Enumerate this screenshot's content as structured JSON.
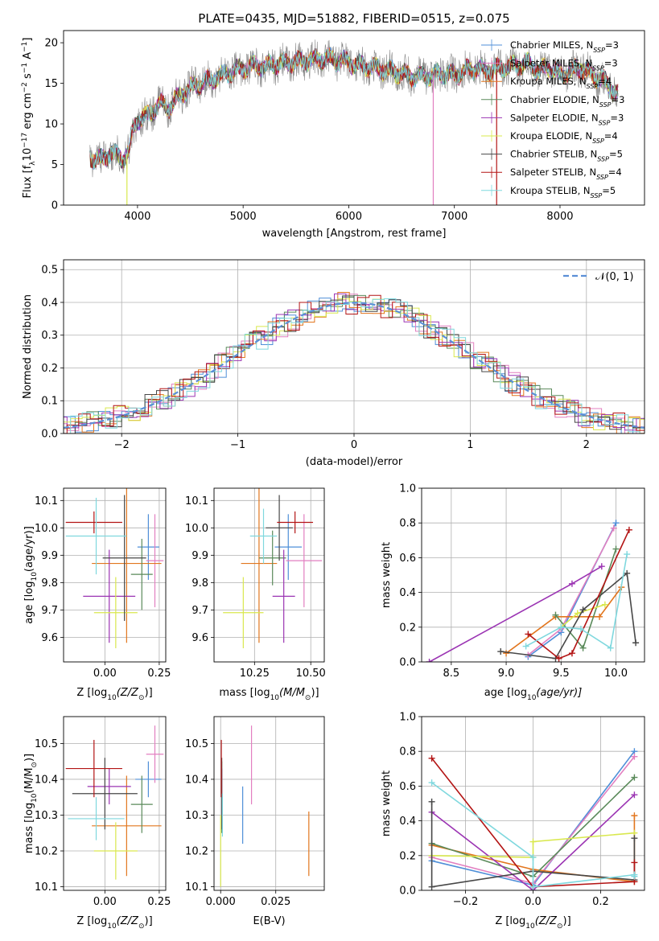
{
  "figure_title": "PLATE=0435, MJD=51882, FIBERID=0515, z=0.075",
  "models": [
    {
      "name": "Chabrier MILES",
      "nssp": "3",
      "color": "#4f8fd8"
    },
    {
      "name": "Salpeter MILES",
      "nssp": "3",
      "color": "#e27fc0"
    },
    {
      "name": "Kroupa MILES",
      "nssp": "4",
      "color": "#e2761e"
    },
    {
      "name": "Chabrier ELODIE",
      "nssp": "3",
      "color": "#5a8a5a"
    },
    {
      "name": "Salpeter ELODIE",
      "nssp": "3",
      "color": "#9b34b3"
    },
    {
      "name": "Kroupa ELODIE",
      "nssp": "4",
      "color": "#d9e84e"
    },
    {
      "name": "Chabrier STELIB",
      "nssp": "5",
      "color": "#474747"
    },
    {
      "name": "Salpeter STELIB",
      "nssp": "4",
      "color": "#b31414"
    },
    {
      "name": "Kroupa STELIB",
      "nssp": "5",
      "color": "#7fd8de"
    }
  ],
  "chart_data": [
    {
      "id": "spectrum",
      "type": "line",
      "xlabel": "wavelength [Angstrom, rest frame]",
      "ylabel_main": "Flux [f",
      "ylabel_unit": "10",
      "ylabel_exp": "−17",
      "ylabel_tail": " erg cm",
      "ylabel_exp2": "−2",
      "ylabel_tail2": " s",
      "ylabel_exp3": "−1",
      "ylabel_tail3": " A",
      "ylabel_exp4": "−1",
      "ylabel_end": "]",
      "xlim": [
        3300,
        8800
      ],
      "ylim": [
        0,
        21.5
      ],
      "xticks": [
        4000,
        5000,
        6000,
        7000,
        8000
      ],
      "yticks": [
        0,
        5,
        10,
        15,
        20
      ],
      "xticklabels": [
        "4000",
        "5000",
        "6000",
        "7000",
        "8000"
      ],
      "yticklabels": [
        "0",
        "5",
        "10",
        "15",
        "20"
      ],
      "continuum": {
        "x": [
          3550,
          3650,
          3750,
          3850,
          3920,
          3960,
          4000,
          4100,
          4200,
          4300,
          4400,
          4500,
          4600,
          4700,
          4800,
          4900,
          5000,
          5100,
          5200,
          5300,
          5400,
          5500,
          5600,
          5700,
          5800,
          5900,
          6000,
          6100,
          6200,
          6300,
          6400,
          6500,
          6600,
          6700,
          6800,
          6900,
          7000,
          7100,
          7200,
          7300,
          7400,
          7500,
          7600,
          7700,
          7800,
          7900,
          8000,
          8100,
          8200,
          8300,
          8400,
          8550
        ],
        "y": [
          6.0,
          5.5,
          6.5,
          5.8,
          6.5,
          9.5,
          10.5,
          11.0,
          12.5,
          12.0,
          13.5,
          14.5,
          15.0,
          15.5,
          16.0,
          16.5,
          16.8,
          17.2,
          17.0,
          17.4,
          17.5,
          17.7,
          17.8,
          18.0,
          18.0,
          17.8,
          17.6,
          17.2,
          17.0,
          16.8,
          16.5,
          16.2,
          15.8,
          15.8,
          16.0,
          16.2,
          16.0,
          16.5,
          16.8,
          16.5,
          16.8,
          17.0,
          17.2,
          17.5,
          16.5,
          17.0,
          16.0,
          16.5,
          17.0,
          16.0,
          15.5,
          13.5
        ]
      },
      "dips": [
        {
          "x": 3900,
          "model": "Kroupa ELODIE",
          "y": 0
        },
        {
          "x": 6800,
          "model": "Salpeter MILES",
          "y": 0
        },
        {
          "x": 7400,
          "model": "Salpeter STELIB",
          "y": 0
        }
      ]
    },
    {
      "id": "residual-hist",
      "type": "histogram",
      "xlabel": "(data-model)/error",
      "ylabel": "Normed distribution",
      "xlim": [
        -2.5,
        2.5
      ],
      "ylim": [
        0,
        0.53
      ],
      "xticks": [
        -2,
        -1,
        0,
        1,
        2
      ],
      "yticks": [
        0.0,
        0.1,
        0.2,
        0.3,
        0.4,
        0.5
      ],
      "xticklabels": [
        "−2",
        "−1",
        "0",
        "1",
        "2"
      ],
      "yticklabels": [
        "0.0",
        "0.1",
        "0.2",
        "0.3",
        "0.4",
        "0.5"
      ],
      "bin_width": 0.1,
      "reference_label": "𝒩(0, 1)",
      "reference_color": "#5b8fd6"
    },
    {
      "id": "age-vs-Z",
      "type": "errorbar",
      "xlabel": "Z [log",
      "xlabel_sub": "10",
      "xlabel_tail": "(Z/Z",
      "xlabel_sub2": "⊙",
      "xlabel_end": ")]",
      "ylabel": "age  [log",
      "ylabel_sub": "10",
      "ylabel_tail": "(age/yr)]",
      "xlim": [
        -0.19,
        0.28
      ],
      "ylim": [
        9.51,
        10.145
      ],
      "xticks": [
        0.0,
        0.25
      ],
      "yticks": [
        9.6,
        9.7,
        9.8,
        9.9,
        10.0,
        10.1
      ],
      "xticklabels": [
        "0.00",
        "0.25"
      ],
      "yticklabels": [
        "9.6",
        "9.7",
        "9.8",
        "9.9",
        "10.0",
        "10.1"
      ],
      "points": [
        {
          "model": "Chabrier MILES",
          "x": 0.2,
          "xerr": 0.05,
          "y": 9.93,
          "yerr": 0.12
        },
        {
          "model": "Salpeter MILES",
          "x": 0.23,
          "xerr": 0.04,
          "y": 9.88,
          "yerr": 0.17
        },
        {
          "model": "Kroupa MILES",
          "x": 0.1,
          "xerr": 0.16,
          "y": 9.87,
          "yerr": 0.29
        },
        {
          "model": "Chabrier ELODIE",
          "x": 0.17,
          "xerr": 0.05,
          "y": 9.83,
          "yerr": 0.13
        },
        {
          "model": "Salpeter ELODIE",
          "x": 0.02,
          "xerr": 0.12,
          "y": 9.75,
          "yerr": 0.17
        },
        {
          "model": "Kroupa ELODIE",
          "x": 0.05,
          "xerr": 0.1,
          "y": 9.69,
          "yerr": 0.13
        },
        {
          "model": "Chabrier STELIB",
          "x": 0.09,
          "xerr": 0.1,
          "y": 9.89,
          "yerr": 0.23
        },
        {
          "model": "Salpeter STELIB",
          "x": -0.05,
          "xerr": 0.13,
          "y": 10.02,
          "yerr": 0.04
        },
        {
          "model": "Kroupa STELIB",
          "x": -0.04,
          "xerr": 0.14,
          "y": 9.97,
          "yerr": 0.14
        }
      ]
    },
    {
      "id": "age-vs-mass",
      "type": "errorbar",
      "xlabel": "mass [log",
      "xlabel_sub": "10",
      "xlabel_tail": "(M/M",
      "xlabel_sub2": "⊙",
      "xlabel_end": ")]",
      "xlim": [
        10.07,
        10.56
      ],
      "ylim": [
        9.51,
        10.145
      ],
      "xticks": [
        10.25,
        10.5
      ],
      "yticks": [
        9.6,
        9.7,
        9.8,
        9.9,
        10.0,
        10.1
      ],
      "xticklabels": [
        "10.25",
        "10.50"
      ],
      "yticklabels": [
        "9.6",
        "9.7",
        "9.8",
        "9.9",
        "10.0",
        "10.1"
      ],
      "points": [
        {
          "model": "Chabrier MILES",
          "x": 10.4,
          "xerr": 0.06,
          "y": 9.93,
          "yerr": 0.12
        },
        {
          "model": "Salpeter MILES",
          "x": 10.47,
          "xerr": 0.08,
          "y": 9.88,
          "yerr": 0.17
        },
        {
          "model": "Kroupa MILES",
          "x": 10.27,
          "xerr": 0.08,
          "y": 9.87,
          "yerr": 0.29
        },
        {
          "model": "Chabrier ELODIE",
          "x": 10.33,
          "xerr": 0.06,
          "y": 9.89,
          "yerr": 0.1
        },
        {
          "model": "Salpeter ELODIE",
          "x": 10.38,
          "xerr": 0.05,
          "y": 9.75,
          "yerr": 0.17
        },
        {
          "model": "Kroupa ELODIE",
          "x": 10.2,
          "xerr": 0.09,
          "y": 9.69,
          "yerr": 0.13
        },
        {
          "model": "Chabrier STELIB",
          "x": 10.36,
          "xerr": 0.06,
          "y": 10.0,
          "yerr": 0.12
        },
        {
          "model": "Salpeter STELIB",
          "x": 10.43,
          "xerr": 0.08,
          "y": 10.02,
          "yerr": 0.04
        },
        {
          "model": "Kroupa STELIB",
          "x": 10.29,
          "xerr": 0.06,
          "y": 9.97,
          "yerr": 0.1
        }
      ]
    },
    {
      "id": "mass-weight-vs-age",
      "type": "line",
      "xlabel": "age  [log",
      "xlabel_sub": "10",
      "xlabel_tail": "(age/yr)]",
      "ylabel": "mass weight",
      "xlim": [
        8.23,
        10.26
      ],
      "ylim": [
        0,
        1.0
      ],
      "xticks": [
        8.5,
        9.0,
        9.5,
        10.0
      ],
      "yticks": [
        0.0,
        0.2,
        0.4,
        0.6,
        0.8,
        1.0
      ],
      "xticklabels": [
        "8.5",
        "9.0",
        "9.5",
        "10.0"
      ],
      "yticklabels": [
        "0.0",
        "0.2",
        "0.4",
        "0.6",
        "0.8",
        "1.0"
      ],
      "series": [
        {
          "model": "Chabrier MILES",
          "x": [
            9.2,
            9.5,
            10.0
          ],
          "y": [
            0.03,
            0.17,
            0.8
          ]
        },
        {
          "model": "Salpeter MILES",
          "x": [
            9.2,
            9.5,
            9.98
          ],
          "y": [
            0.04,
            0.19,
            0.77
          ]
        },
        {
          "model": "Kroupa MILES",
          "x": [
            9.0,
            9.45,
            9.85,
            10.05
          ],
          "y": [
            0.05,
            0.26,
            0.26,
            0.43
          ]
        },
        {
          "model": "Chabrier ELODIE",
          "x": [
            9.45,
            9.7,
            10.0
          ],
          "y": [
            0.27,
            0.08,
            0.65
          ]
        },
        {
          "model": "Salpeter ELODIE",
          "x": [
            8.3,
            9.6,
            9.87
          ],
          "y": [
            0.0,
            0.45,
            0.55
          ]
        },
        {
          "model": "Kroupa ELODIE",
          "x": [
            9.5,
            9.65,
            9.9
          ],
          "y": [
            0.2,
            0.28,
            0.33
          ]
        },
        {
          "model": "Chabrier STELIB",
          "x": [
            8.95,
            9.45,
            9.7,
            10.1,
            10.18
          ],
          "y": [
            0.06,
            0.02,
            0.3,
            0.51,
            0.11
          ]
        },
        {
          "model": "Salpeter STELIB",
          "x": [
            9.2,
            9.48,
            9.6,
            10.12
          ],
          "y": [
            0.16,
            0.02,
            0.05,
            0.76
          ]
        },
        {
          "model": "Kroupa STELIB",
          "x": [
            9.18,
            9.5,
            9.68,
            9.95,
            10.1
          ],
          "y": [
            0.09,
            0.2,
            0.19,
            0.08,
            0.62
          ]
        }
      ]
    },
    {
      "id": "mass-vs-Z",
      "type": "errorbar",
      "xlabel": "Z [log",
      "xlabel_sub": "10",
      "xlabel_tail": "(Z/Z",
      "xlabel_sub2": "⊙",
      "xlabel_end": ")]",
      "ylabel": "mass [log",
      "ylabel_sub": "10",
      "ylabel_tail": "(M/M",
      "ylabel_sub2": "⊙",
      "ylabel_end": ")]",
      "xlim": [
        -0.19,
        0.28
      ],
      "ylim": [
        10.09,
        10.575
      ],
      "xticks": [
        0.0,
        0.25
      ],
      "yticks": [
        10.1,
        10.2,
        10.3,
        10.4,
        10.5
      ],
      "xticklabels": [
        "0.00",
        "0.25"
      ],
      "yticklabels": [
        "10.1",
        "10.2",
        "10.3",
        "10.4",
        "10.5"
      ],
      "points": [
        {
          "model": "Chabrier MILES",
          "x": 0.2,
          "xerr": 0.06,
          "y": 10.4,
          "yerr": 0.05
        },
        {
          "model": "Salpeter MILES",
          "x": 0.23,
          "xerr": 0.04,
          "y": 10.47,
          "yerr": 0.08
        },
        {
          "model": "Kroupa MILES",
          "x": 0.1,
          "xerr": 0.16,
          "y": 10.27,
          "yerr": 0.14
        },
        {
          "model": "Chabrier ELODIE",
          "x": 0.17,
          "xerr": 0.05,
          "y": 10.33,
          "yerr": 0.08
        },
        {
          "model": "Salpeter ELODIE",
          "x": 0.02,
          "xerr": 0.1,
          "y": 10.38,
          "yerr": 0.05
        },
        {
          "model": "Kroupa ELODIE",
          "x": 0.05,
          "xerr": 0.1,
          "y": 10.2,
          "yerr": 0.08
        },
        {
          "model": "Chabrier STELIB",
          "x": 0.0,
          "xerr": 0.15,
          "y": 10.36,
          "yerr": 0.1
        },
        {
          "model": "Salpeter STELIB",
          "x": -0.05,
          "xerr": 0.13,
          "y": 10.43,
          "yerr": 0.08
        },
        {
          "model": "Kroupa STELIB",
          "x": -0.04,
          "xerr": 0.13,
          "y": 10.29,
          "yerr": 0.06
        }
      ]
    },
    {
      "id": "mass-vs-ebv",
      "type": "errorbar",
      "xlabel": "E(B-V)",
      "xlim": [
        -0.003,
        0.047
      ],
      "ylim": [
        10.09,
        10.575
      ],
      "xticks": [
        0.0,
        0.025
      ],
      "yticks": [
        10.1,
        10.2,
        10.3,
        10.4,
        10.5
      ],
      "xticklabels": [
        "0.000",
        "0.025"
      ],
      "yticklabels": [
        "10.1",
        "10.2",
        "10.3",
        "10.4",
        "10.5"
      ],
      "points": [
        {
          "model": "Chabrier MILES",
          "x": 0.01,
          "xerr": 0.0,
          "y": 10.3,
          "yerr": 0.08
        },
        {
          "model": "Salpeter MILES",
          "x": 0.014,
          "xerr": 0.0,
          "y": 10.44,
          "yerr": 0.11
        },
        {
          "model": "Kroupa MILES",
          "x": 0.04,
          "xerr": 0.0,
          "y": 10.22,
          "yerr": 0.09
        },
        {
          "model": "Chabrier ELODIE",
          "x": 0.0005,
          "xerr": 0.0,
          "y": 10.35,
          "yerr": 0.1
        },
        {
          "model": "Salpeter ELODIE",
          "x": 0.0005,
          "xerr": 0.0,
          "y": 10.38,
          "yerr": 0.05
        },
        {
          "model": "Kroupa ELODIE",
          "x": 0.0,
          "xerr": 0.0,
          "y": 10.2,
          "yerr": 0.1
        },
        {
          "model": "Chabrier STELIB",
          "x": 0.0005,
          "xerr": 0.0,
          "y": 10.36,
          "yerr": 0.1
        },
        {
          "model": "Salpeter STELIB",
          "x": 0.0003,
          "xerr": 0.0,
          "y": 10.43,
          "yerr": 0.08
        },
        {
          "model": "Kroupa STELIB",
          "x": 0.0008,
          "xerr": 0.0,
          "y": 10.3,
          "yerr": 0.06
        }
      ]
    },
    {
      "id": "mass-weight-vs-Z",
      "type": "line",
      "xlabel": "Z [log",
      "xlabel_sub": "10",
      "xlabel_tail": "(Z/Z",
      "xlabel_sub2": "⊙",
      "xlabel_end": ")]",
      "ylabel": "mass weight",
      "xlim": [
        -0.33,
        0.33
      ],
      "ylim": [
        0,
        1.0
      ],
      "xticks": [
        -0.2,
        0.0,
        0.2
      ],
      "yticks": [
        0.0,
        0.2,
        0.4,
        0.6,
        0.8,
        1.0
      ],
      "xticklabels": [
        "−0.2",
        "0.0",
        "0.2"
      ],
      "yticklabels": [
        "0.0",
        "0.2",
        "0.4",
        "0.6",
        "0.8",
        "1.0"
      ],
      "series": [
        {
          "model": "Chabrier MILES",
          "x": [
            -0.3,
            0.0,
            0.3
          ],
          "y": [
            0.17,
            0.03,
            0.8
          ]
        },
        {
          "model": "Salpeter MILES",
          "x": [
            -0.3,
            0.0,
            0.3
          ],
          "y": [
            0.19,
            0.04,
            0.77
          ]
        },
        {
          "model": "Kroupa MILES",
          "x": [
            -0.3,
            0.0,
            0.3,
            0.3
          ],
          "y": [
            0.26,
            0.12,
            0.05,
            0.43
          ]
        },
        {
          "model": "Chabrier ELODIE",
          "x": [
            -0.3,
            0.0,
            0.3
          ],
          "y": [
            0.27,
            0.08,
            0.65
          ]
        },
        {
          "model": "Salpeter ELODIE",
          "x": [
            -0.3,
            0.0,
            0.3
          ],
          "y": [
            0.45,
            0.0,
            0.55
          ]
        },
        {
          "model": "Kroupa ELODIE",
          "x": [
            -0.3,
            0.0,
            0.0,
            0.3
          ],
          "y": [
            0.2,
            0.19,
            0.28,
            0.33
          ]
        },
        {
          "model": "Chabrier STELIB",
          "x": [
            -0.3,
            -0.3,
            0.0,
            0.3,
            0.3
          ],
          "y": [
            0.51,
            0.02,
            0.11,
            0.06,
            0.3
          ]
        },
        {
          "model": "Salpeter STELIB",
          "x": [
            -0.3,
            0.0,
            0.3,
            0.3
          ],
          "y": [
            0.76,
            0.02,
            0.05,
            0.16
          ]
        },
        {
          "model": "Kroupa STELIB",
          "x": [
            -0.3,
            0.0,
            0.0,
            0.3,
            0.3
          ],
          "y": [
            0.62,
            0.19,
            0.02,
            0.09,
            0.08
          ]
        }
      ]
    }
  ]
}
